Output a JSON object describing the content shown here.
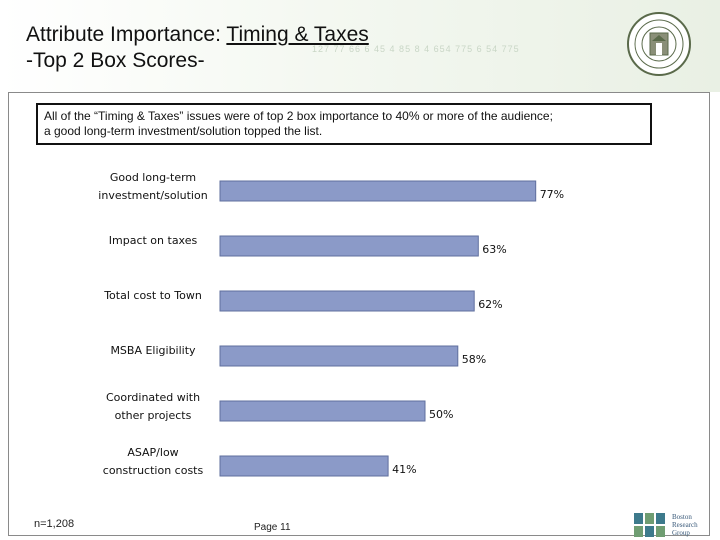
{
  "slide": {
    "title_plain": "Attribute Importance: ",
    "title_underlined": "Timing & Taxes",
    "subtitle": "-Top 2 Box Scores-",
    "callout_line1": "All of the “Timing & Taxes” issues were of top 2 box importance to 40% or more of the audience;",
    "callout_line2": "a good long-term investment/solution topped the list.",
    "sample_size": "n=1,208",
    "page_label": "Page 11",
    "logo_lines": [
      "Boston",
      "Research",
      "Group"
    ],
    "header_numbers": "127 77 66 6   45 4 85 8   4 654 775 6 54 775"
  },
  "colors": {
    "bar_fill": "#8b9ac8",
    "bar_edge": "#5f6f9e",
    "text": "#111111",
    "seal": "#5a6a4a"
  },
  "chart_data": {
    "type": "bar",
    "orientation": "horizontal",
    "categories": [
      [
        "Good long-term",
        "investment/solution"
      ],
      [
        "Impact on taxes"
      ],
      [
        "Total cost to Town"
      ],
      [
        "MSBA Eligibility"
      ],
      [
        "Coordinated with",
        "other projects"
      ],
      [
        "ASAP/low",
        "construction costs"
      ]
    ],
    "values": [
      77,
      63,
      62,
      58,
      50,
      41
    ],
    "value_labels": [
      "77%",
      "63%",
      "62%",
      "58%",
      "50%",
      "41%"
    ],
    "unit": "%",
    "xlim": [
      0,
      100
    ],
    "grid": false,
    "legend": "none"
  }
}
